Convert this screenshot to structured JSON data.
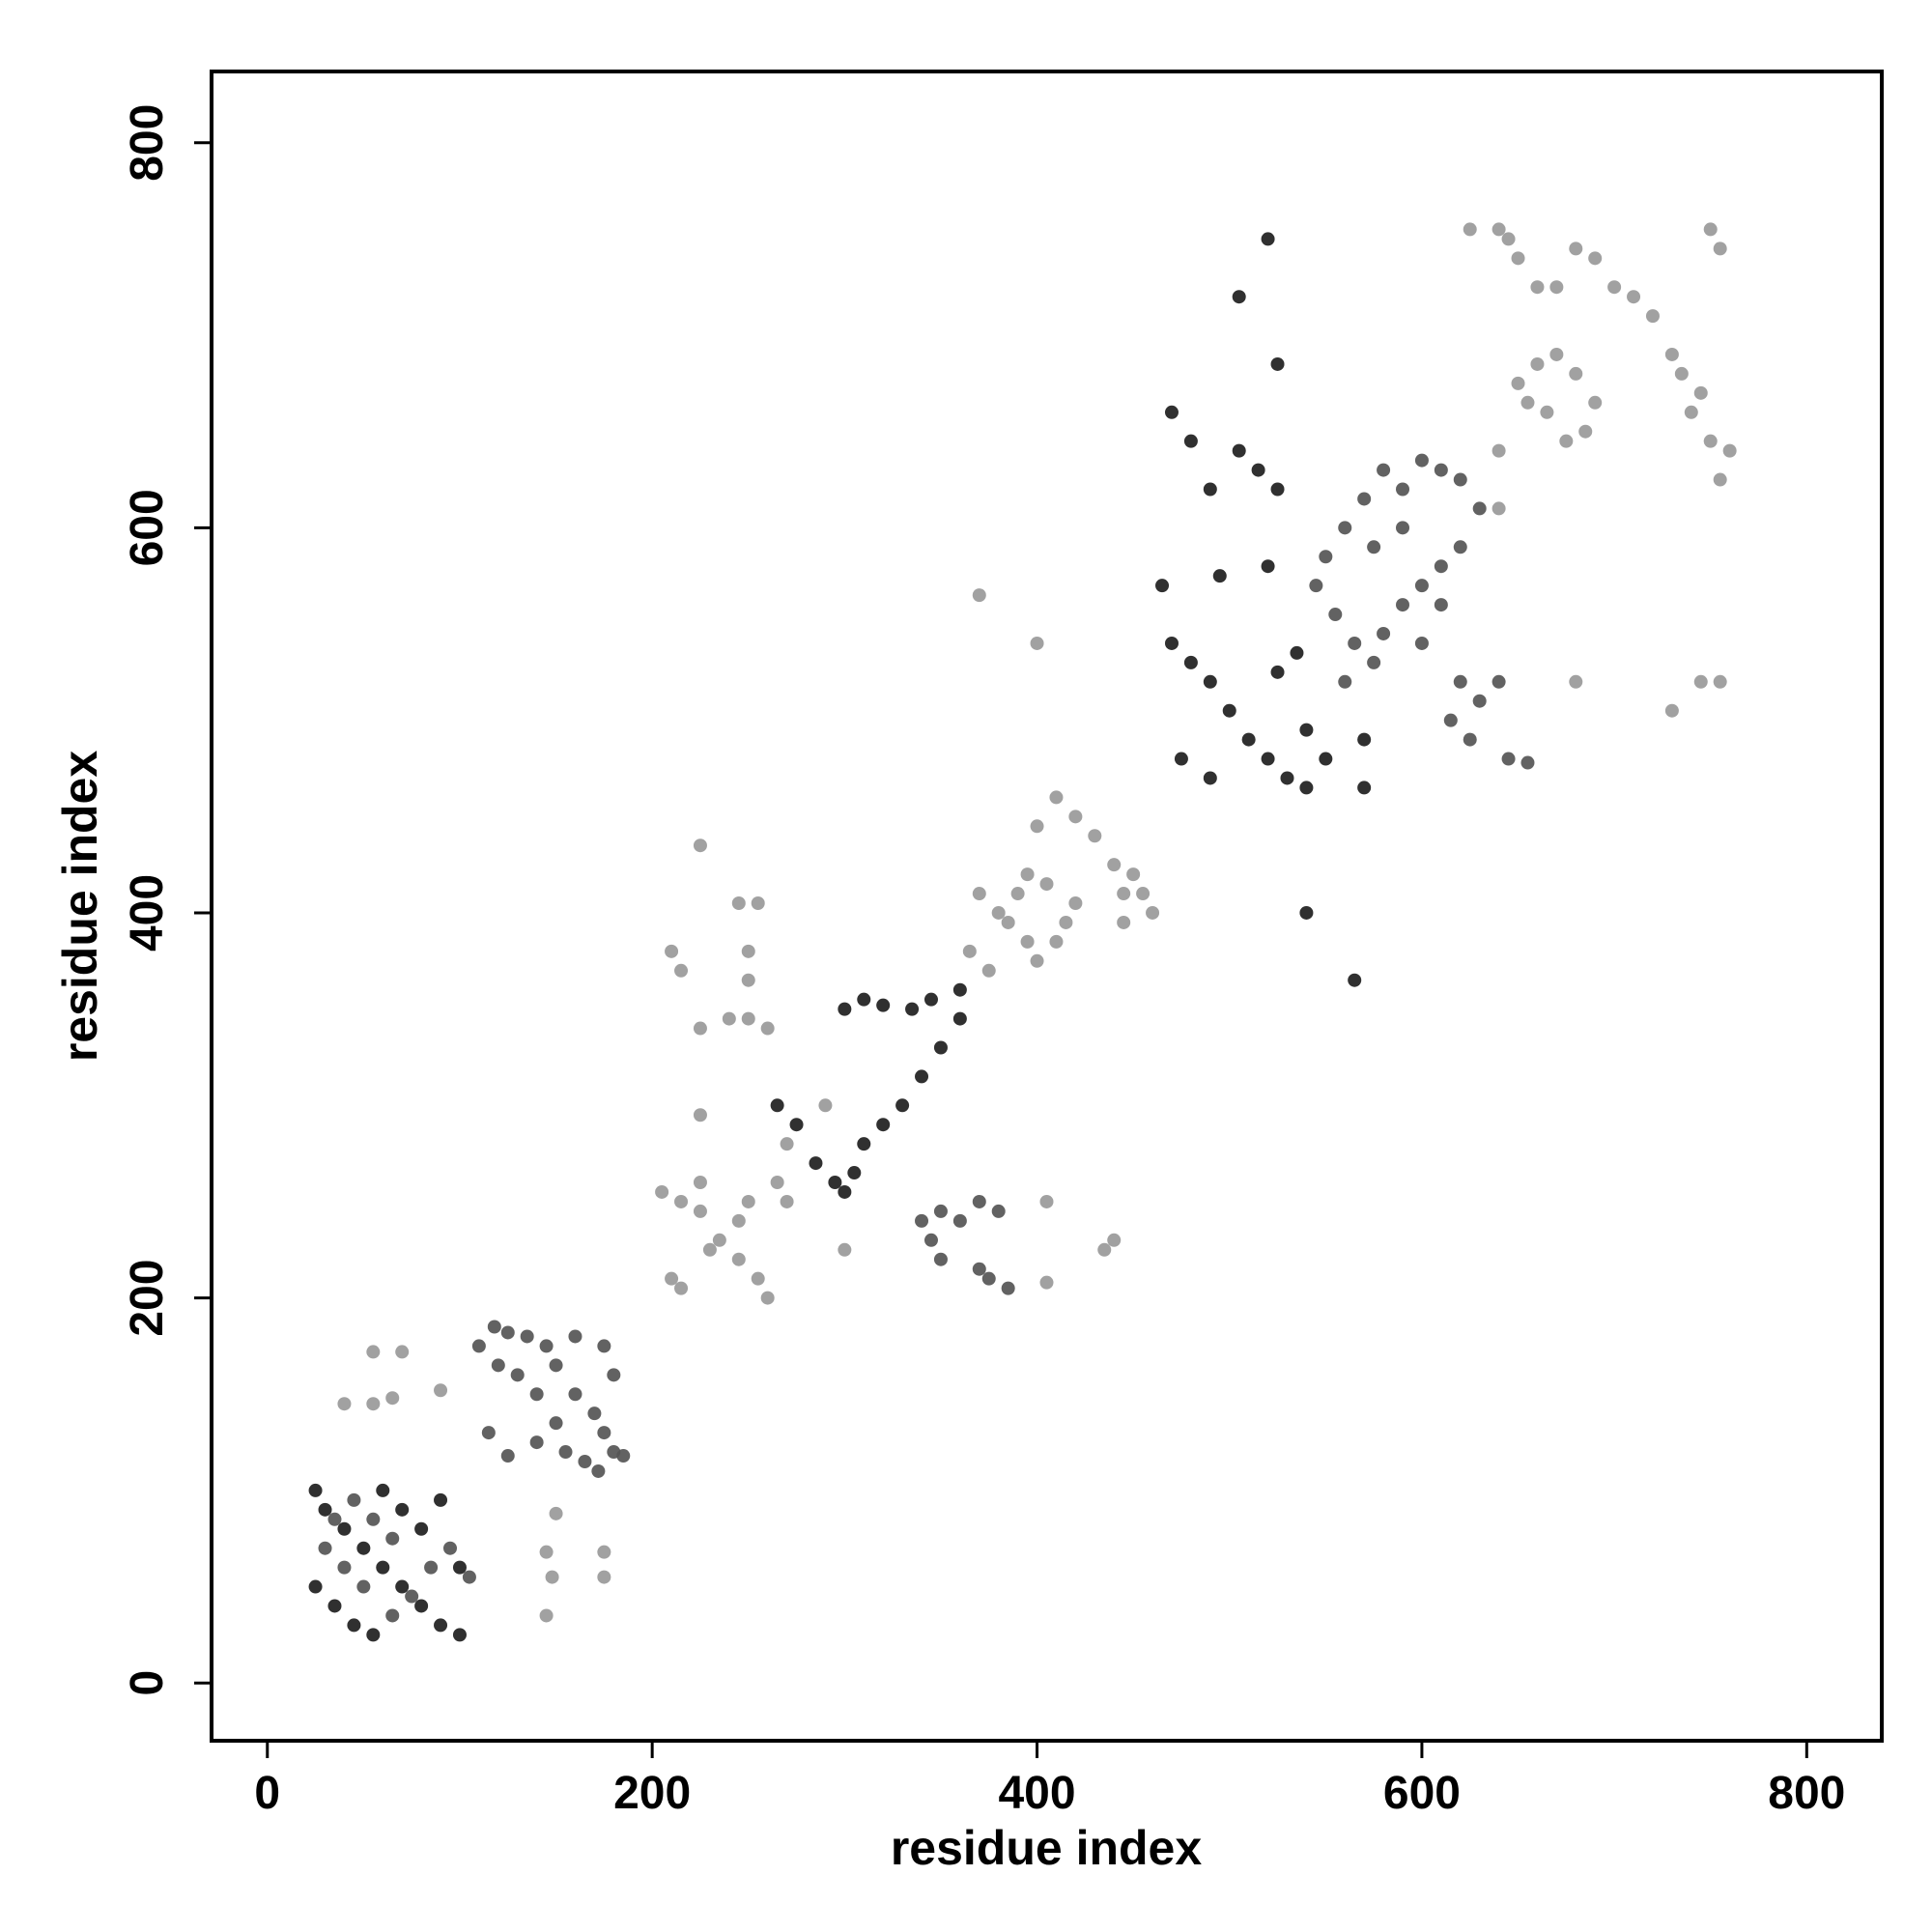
{
  "chart_data": {
    "type": "scatter",
    "x_label": "residue index",
    "y_label": "residue index",
    "xlim": [
      -29,
      839
    ],
    "ylim": [
      -30,
      837
    ],
    "xticks": [
      0,
      200,
      400,
      600,
      800
    ],
    "yticks": [
      0,
      200,
      400,
      600,
      800
    ],
    "grid": false,
    "series": [
      {
        "color": "#1e1e1e",
        "x": [
          25,
          30,
          40,
          50,
          60,
          70,
          80,
          90,
          100,
          25,
          35,
          45,
          55,
          60,
          70,
          80,
          90,
          100,
          265,
          275,
          285,
          295,
          300,
          305,
          310,
          320,
          330,
          340,
          350,
          360,
          360,
          345,
          335,
          320,
          310,
          300,
          465,
          470,
          480,
          490,
          500,
          510,
          520,
          530,
          540,
          525,
          535,
          540,
          550,
          490,
          475,
          495,
          520,
          470,
          480,
          490,
          505,
          515,
          525,
          525,
          520,
          505,
          540,
          565,
          570,
          570
        ],
        "values": [
          100,
          90,
          80,
          70,
          60,
          50,
          40,
          30,
          25,
          50,
          40,
          30,
          25,
          100,
          90,
          80,
          95,
          60,
          300,
          290,
          270,
          260,
          255,
          265,
          280,
          290,
          300,
          315,
          330,
          345,
          360,
          355,
          350,
          352,
          355,
          350,
          570,
          540,
          530,
          520,
          505,
          490,
          480,
          470,
          465,
          525,
          535,
          495,
          480,
          470,
          480,
          575,
          580,
          660,
          645,
          620,
          640,
          630,
          620,
          685,
          750,
          720,
          400,
          365,
          465,
          490
        ]
      },
      {
        "color": "#555555",
        "x": [
          105,
          95,
          85,
          75,
          65,
          50,
          40,
          30,
          55,
          65,
          45,
          35,
          110,
          118,
          125,
          135,
          145,
          150,
          160,
          170,
          175,
          180,
          185,
          172,
          165,
          155,
          150,
          140,
          130,
          120,
          115,
          125,
          160,
          175,
          180,
          140,
          340,
          350,
          360,
          370,
          380,
          370,
          375,
          385,
          350,
          345,
          545,
          555,
          565,
          575,
          580,
          590,
          600,
          610,
          620,
          630,
          620,
          610,
          600,
          590,
          580,
          570,
          560,
          550,
          560,
          575,
          590,
          610,
          600,
          620,
          630,
          640,
          615,
          625,
          645,
          655
        ],
        "values": [
          55,
          70,
          60,
          45,
          35,
          50,
          60,
          70,
          85,
          75,
          95,
          85,
          175,
          185,
          182,
          180,
          175,
          165,
          150,
          140,
          130,
          120,
          118,
          110,
          115,
          120,
          135,
          150,
          160,
          165,
          130,
          118,
          180,
          175,
          160,
          125,
          240,
          245,
          240,
          250,
          245,
          215,
          210,
          205,
          220,
          230,
          570,
          555,
          540,
          530,
          545,
          560,
          570,
          580,
          590,
          610,
          625,
          630,
          635,
          620,
          630,
          615,
          600,
          585,
          520,
          590,
          600,
          560,
          540,
          520,
          510,
          520,
          500,
          490,
          480,
          478
        ]
      },
      {
        "color": "#999999",
        "x": [
          40,
          55,
          65,
          90,
          55,
          70,
          145,
          148,
          145,
          150,
          175,
          175,
          205,
          215,
          225,
          235,
          245,
          255,
          260,
          210,
          215,
          250,
          225,
          245,
          265,
          270,
          230,
          210,
          215,
          225,
          240,
          250,
          250,
          245,
          255,
          225,
          225,
          250,
          260,
          290,
          300,
          270,
          405,
          405,
          440,
          435,
          370,
          380,
          385,
          395,
          400,
          410,
          415,
          420,
          405,
          395,
          390,
          400,
          410,
          420,
          430,
          440,
          450,
          445,
          460,
          445,
          365,
          375,
          400,
          370,
          455,
          650,
          660,
          670,
          680,
          690,
          685,
          675,
          665,
          655,
          640,
          640,
          625,
          640,
          645,
          650,
          660,
          670,
          680,
          690,
          700,
          710,
          720,
          730,
          735,
          745,
          740,
          750,
          760,
          755,
          750,
          755,
          745,
          755,
          680,
          730
        ],
        "values": [
          145,
          145,
          148,
          152,
          172,
          172,
          35,
          55,
          68,
          88,
          55,
          68,
          255,
          250,
          245,
          230,
          220,
          210,
          200,
          210,
          205,
          250,
          260,
          240,
          260,
          250,
          225,
          380,
          370,
          340,
          345,
          345,
          365,
          405,
          405,
          435,
          295,
          380,
          340,
          300,
          225,
          280,
          250,
          208,
          230,
          225,
          410,
          400,
          395,
          385,
          375,
          385,
          395,
          405,
          415,
          420,
          410,
          445,
          460,
          450,
          440,
          425,
          420,
          395,
          400,
          410,
          380,
          370,
          540,
          565,
          410,
          675,
          685,
          690,
          680,
          665,
          650,
          645,
          660,
          665,
          610,
          640,
          755,
          755,
          750,
          740,
          725,
          725,
          745,
          740,
          725,
          720,
          710,
          690,
          680,
          670,
          660,
          645,
          640,
          625,
          755,
          745,
          520,
          520,
          520,
          505
        ]
      }
    ]
  }
}
